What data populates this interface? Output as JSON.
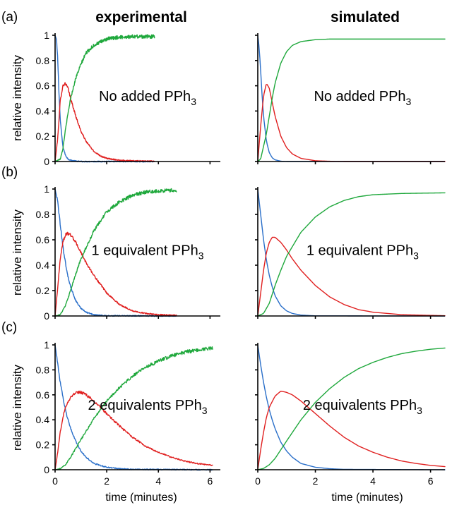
{
  "figure": {
    "column_titles": [
      "experimental",
      "simulated"
    ],
    "row_labels": [
      "(a)",
      "(b)",
      "(c)"
    ],
    "y_axis_label": "relative intensity",
    "x_axis_label": "time (minutes)",
    "colors": {
      "blue": "#2a6fc9",
      "red": "#e02020",
      "green": "#1fa83c"
    }
  },
  "chart_data": [
    {
      "type": "line",
      "panel": "a-experimental",
      "row": 0,
      "col": 0,
      "annotation": {
        "text": "No added PPh",
        "subscript": "3"
      },
      "xlim": [
        0,
        6.4
      ],
      "ylim": [
        0,
        1
      ],
      "xticks": [
        0,
        2,
        4,
        6
      ],
      "xtick_labels": [
        "",
        "",
        "",
        ""
      ],
      "yticks": [
        0,
        0.2,
        0.4,
        0.6,
        0.8,
        1
      ],
      "ytick_labels": [
        "0",
        "0.2",
        "0.4",
        "0.6",
        "0.8",
        "1"
      ],
      "x_end": 3.85,
      "noise": 0.012,
      "series": [
        {
          "color": "blue",
          "x": [
            0,
            0.05,
            0.1,
            0.15,
            0.2,
            0.3,
            0.4,
            0.5,
            0.6,
            0.8,
            1.0,
            1.5,
            3.85
          ],
          "y": [
            1.0,
            0.97,
            0.82,
            0.55,
            0.33,
            0.12,
            0.05,
            0.02,
            0.01,
            0.003,
            0.0,
            0.0,
            0.0
          ]
        },
        {
          "color": "red",
          "x": [
            0,
            0.1,
            0.2,
            0.3,
            0.4,
            0.5,
            0.6,
            0.8,
            1.0,
            1.2,
            1.5,
            1.8,
            2.0,
            2.5,
            3.0,
            3.85
          ],
          "y": [
            0.0,
            0.18,
            0.48,
            0.6,
            0.62,
            0.58,
            0.5,
            0.36,
            0.24,
            0.16,
            0.08,
            0.04,
            0.025,
            0.01,
            0.005,
            0.002
          ]
        },
        {
          "color": "green",
          "x": [
            0,
            0.2,
            0.3,
            0.4,
            0.5,
            0.6,
            0.8,
            1.0,
            1.2,
            1.5,
            2.0,
            2.5,
            3.0,
            3.85
          ],
          "y": [
            0.0,
            0.02,
            0.1,
            0.25,
            0.38,
            0.5,
            0.66,
            0.77,
            0.86,
            0.92,
            0.97,
            0.985,
            0.99,
            0.99
          ]
        }
      ]
    },
    {
      "type": "line",
      "panel": "a-simulated",
      "row": 0,
      "col": 1,
      "annotation": {
        "text": "No added PPh",
        "subscript": "3"
      },
      "xlim": [
        0,
        6.5
      ],
      "ylim": [
        0,
        1
      ],
      "xticks": [
        0,
        2,
        4,
        6
      ],
      "xtick_labels": [
        "",
        "",
        "",
        ""
      ],
      "yticks": [
        0,
        0.2,
        0.4,
        0.6,
        0.8,
        1
      ],
      "ytick_labels": [
        "",
        "",
        "",
        "",
        "",
        ""
      ],
      "x_end": 6.5,
      "noise": 0,
      "series": [
        {
          "color": "blue",
          "x": [
            0,
            0.05,
            0.1,
            0.15,
            0.2,
            0.3,
            0.4,
            0.5,
            0.6,
            0.8,
            1.0,
            1.5,
            6.5
          ],
          "y": [
            1.0,
            0.9,
            0.72,
            0.52,
            0.36,
            0.16,
            0.07,
            0.03,
            0.013,
            0.003,
            0.0,
            0.0,
            0.0
          ]
        },
        {
          "color": "red",
          "x": [
            0,
            0.1,
            0.2,
            0.3,
            0.4,
            0.5,
            0.6,
            0.8,
            1.0,
            1.2,
            1.5,
            2.0,
            2.5,
            3.0,
            4.0,
            6.5
          ],
          "y": [
            0.0,
            0.28,
            0.52,
            0.62,
            0.58,
            0.47,
            0.36,
            0.2,
            0.11,
            0.06,
            0.025,
            0.006,
            0.002,
            0.0,
            0.0,
            0.0
          ]
        },
        {
          "color": "green",
          "x": [
            0,
            0.1,
            0.2,
            0.3,
            0.4,
            0.5,
            0.6,
            0.8,
            1.0,
            1.2,
            1.5,
            2.0,
            2.5,
            3.0,
            6.5
          ],
          "y": [
            0.0,
            0.02,
            0.12,
            0.22,
            0.36,
            0.5,
            0.62,
            0.78,
            0.87,
            0.92,
            0.95,
            0.965,
            0.97,
            0.97,
            0.97
          ]
        }
      ]
    },
    {
      "type": "line",
      "panel": "b-experimental",
      "row": 1,
      "col": 0,
      "annotation": {
        "text": "1 equivalent PPh",
        "subscript": "3"
      },
      "xlim": [
        0,
        6.4
      ],
      "ylim": [
        0,
        1
      ],
      "xticks": [
        0,
        2,
        4,
        6
      ],
      "xtick_labels": [
        "",
        "",
        "",
        ""
      ],
      "yticks": [
        0,
        0.2,
        0.4,
        0.6,
        0.8,
        1
      ],
      "ytick_labels": [
        "0",
        "0.2",
        "0.4",
        "0.6",
        "0.8",
        "1"
      ],
      "x_end": 4.7,
      "noise": 0.012,
      "series": [
        {
          "color": "blue",
          "x": [
            0,
            0.1,
            0.2,
            0.3,
            0.4,
            0.5,
            0.6,
            0.8,
            1.0,
            1.2,
            1.5,
            2.0,
            4.7
          ],
          "y": [
            1.0,
            0.9,
            0.72,
            0.55,
            0.42,
            0.31,
            0.23,
            0.12,
            0.06,
            0.03,
            0.01,
            0.002,
            0.0
          ]
        },
        {
          "color": "red",
          "x": [
            0,
            0.1,
            0.2,
            0.3,
            0.4,
            0.5,
            0.6,
            0.8,
            1.0,
            1.2,
            1.5,
            2.0,
            2.5,
            3.0,
            3.5,
            4.0,
            4.7
          ],
          "y": [
            0.0,
            0.22,
            0.45,
            0.58,
            0.64,
            0.65,
            0.64,
            0.58,
            0.5,
            0.42,
            0.32,
            0.18,
            0.09,
            0.04,
            0.02,
            0.01,
            0.005
          ]
        },
        {
          "color": "green",
          "x": [
            0,
            0.2,
            0.4,
            0.6,
            0.8,
            1.0,
            1.5,
            2.0,
            2.5,
            3.0,
            3.5,
            4.0,
            4.7
          ],
          "y": [
            0.0,
            0.01,
            0.08,
            0.2,
            0.33,
            0.45,
            0.67,
            0.82,
            0.9,
            0.95,
            0.975,
            0.985,
            0.99
          ]
        }
      ]
    },
    {
      "type": "line",
      "panel": "b-simulated",
      "row": 1,
      "col": 1,
      "annotation": {
        "text": "1 equivalent PPh",
        "subscript": "3"
      },
      "xlim": [
        0,
        6.5
      ],
      "ylim": [
        0,
        1
      ],
      "xticks": [
        0,
        2,
        4,
        6
      ],
      "xtick_labels": [
        "",
        "",
        "",
        ""
      ],
      "yticks": [
        0,
        0.2,
        0.4,
        0.6,
        0.8,
        1
      ],
      "ytick_labels": [
        "",
        "",
        "",
        "",
        "",
        ""
      ],
      "x_end": 6.5,
      "noise": 0,
      "series": [
        {
          "color": "blue",
          "x": [
            0,
            0.1,
            0.2,
            0.3,
            0.4,
            0.5,
            0.6,
            0.8,
            1.0,
            1.2,
            1.5,
            2.0,
            6.5
          ],
          "y": [
            1.0,
            0.8,
            0.6,
            0.44,
            0.32,
            0.23,
            0.16,
            0.08,
            0.04,
            0.02,
            0.007,
            0.001,
            0.0
          ]
        },
        {
          "color": "red",
          "x": [
            0,
            0.1,
            0.2,
            0.3,
            0.4,
            0.5,
            0.6,
            0.8,
            1.0,
            1.2,
            1.5,
            2.0,
            2.5,
            3.0,
            3.5,
            4.0,
            5.0,
            6.5
          ],
          "y": [
            0.0,
            0.18,
            0.36,
            0.5,
            0.58,
            0.62,
            0.62,
            0.58,
            0.52,
            0.45,
            0.36,
            0.24,
            0.15,
            0.09,
            0.05,
            0.03,
            0.01,
            0.002
          ]
        },
        {
          "color": "green",
          "x": [
            0,
            0.2,
            0.4,
            0.6,
            0.8,
            1.0,
            1.5,
            2.0,
            2.5,
            3.0,
            3.5,
            4.0,
            5.0,
            6.5
          ],
          "y": [
            0.0,
            0.02,
            0.1,
            0.24,
            0.36,
            0.47,
            0.66,
            0.78,
            0.86,
            0.91,
            0.94,
            0.955,
            0.965,
            0.97
          ]
        }
      ]
    },
    {
      "type": "line",
      "panel": "c-experimental",
      "row": 2,
      "col": 0,
      "annotation": {
        "text": "2 equivalents PPh",
        "subscript": "3"
      },
      "xlim": [
        0,
        6.4
      ],
      "ylim": [
        0,
        1
      ],
      "xticks": [
        0,
        2,
        4,
        6
      ],
      "xtick_labels": [
        "0",
        "2",
        "4",
        "6"
      ],
      "yticks": [
        0,
        0.2,
        0.4,
        0.6,
        0.8,
        1
      ],
      "ytick_labels": [
        "0",
        "0.2",
        "0.4",
        "0.6",
        "0.8",
        "1"
      ],
      "x_end": 6.1,
      "noise": 0.012,
      "series": [
        {
          "color": "blue",
          "x": [
            0,
            0.1,
            0.2,
            0.3,
            0.4,
            0.5,
            0.6,
            0.8,
            1.0,
            1.2,
            1.5,
            2.0,
            2.5,
            3.0,
            6.1
          ],
          "y": [
            1.0,
            0.85,
            0.7,
            0.58,
            0.48,
            0.4,
            0.33,
            0.23,
            0.15,
            0.1,
            0.05,
            0.02,
            0.008,
            0.003,
            0.0
          ]
        },
        {
          "color": "red",
          "x": [
            0,
            0.1,
            0.2,
            0.3,
            0.4,
            0.6,
            0.8,
            1.0,
            1.2,
            1.5,
            2.0,
            2.5,
            3.0,
            3.5,
            4.0,
            4.5,
            5.0,
            5.5,
            6.1
          ],
          "y": [
            0.0,
            0.14,
            0.3,
            0.42,
            0.5,
            0.58,
            0.62,
            0.62,
            0.6,
            0.55,
            0.45,
            0.35,
            0.26,
            0.19,
            0.14,
            0.1,
            0.07,
            0.05,
            0.035
          ]
        },
        {
          "color": "green",
          "x": [
            0,
            0.2,
            0.4,
            0.6,
            0.8,
            1.0,
            1.5,
            2.0,
            2.5,
            3.0,
            3.5,
            4.0,
            4.5,
            5.0,
            5.5,
            6.1
          ],
          "y": [
            0.0,
            0.01,
            0.04,
            0.1,
            0.17,
            0.24,
            0.41,
            0.55,
            0.66,
            0.75,
            0.82,
            0.87,
            0.91,
            0.94,
            0.96,
            0.975
          ]
        }
      ]
    },
    {
      "type": "line",
      "panel": "c-simulated",
      "row": 2,
      "col": 1,
      "annotation": {
        "text": "2 equivalents PPh",
        "subscript": "3"
      },
      "xlim": [
        0,
        6.5
      ],
      "ylim": [
        0,
        1
      ],
      "xticks": [
        0,
        2,
        4,
        6
      ],
      "xtick_labels": [
        "0",
        "2",
        "4",
        "6"
      ],
      "yticks": [
        0,
        0.2,
        0.4,
        0.6,
        0.8,
        1
      ],
      "ytick_labels": [
        "",
        "",
        "",
        "",
        "",
        ""
      ],
      "x_end": 6.5,
      "noise": 0,
      "series": [
        {
          "color": "blue",
          "x": [
            0,
            0.1,
            0.2,
            0.3,
            0.4,
            0.5,
            0.6,
            0.8,
            1.0,
            1.2,
            1.5,
            2.0,
            2.5,
            3.0,
            6.5
          ],
          "y": [
            1.0,
            0.84,
            0.7,
            0.58,
            0.48,
            0.4,
            0.33,
            0.22,
            0.15,
            0.1,
            0.05,
            0.02,
            0.008,
            0.003,
            0.0
          ]
        },
        {
          "color": "red",
          "x": [
            0,
            0.1,
            0.2,
            0.3,
            0.4,
            0.6,
            0.8,
            1.0,
            1.2,
            1.5,
            2.0,
            2.5,
            3.0,
            3.5,
            4.0,
            4.5,
            5.0,
            5.5,
            6.0,
            6.5
          ],
          "y": [
            0.0,
            0.16,
            0.3,
            0.42,
            0.5,
            0.59,
            0.63,
            0.62,
            0.6,
            0.55,
            0.45,
            0.35,
            0.26,
            0.19,
            0.14,
            0.1,
            0.07,
            0.05,
            0.035,
            0.025
          ]
        },
        {
          "color": "green",
          "x": [
            0,
            0.2,
            0.4,
            0.6,
            0.8,
            1.0,
            1.5,
            2.0,
            2.5,
            3.0,
            3.5,
            4.0,
            4.5,
            5.0,
            5.5,
            6.0,
            6.5
          ],
          "y": [
            0.0,
            0.01,
            0.04,
            0.09,
            0.16,
            0.23,
            0.4,
            0.54,
            0.65,
            0.74,
            0.81,
            0.86,
            0.9,
            0.93,
            0.95,
            0.965,
            0.975
          ]
        }
      ]
    }
  ]
}
